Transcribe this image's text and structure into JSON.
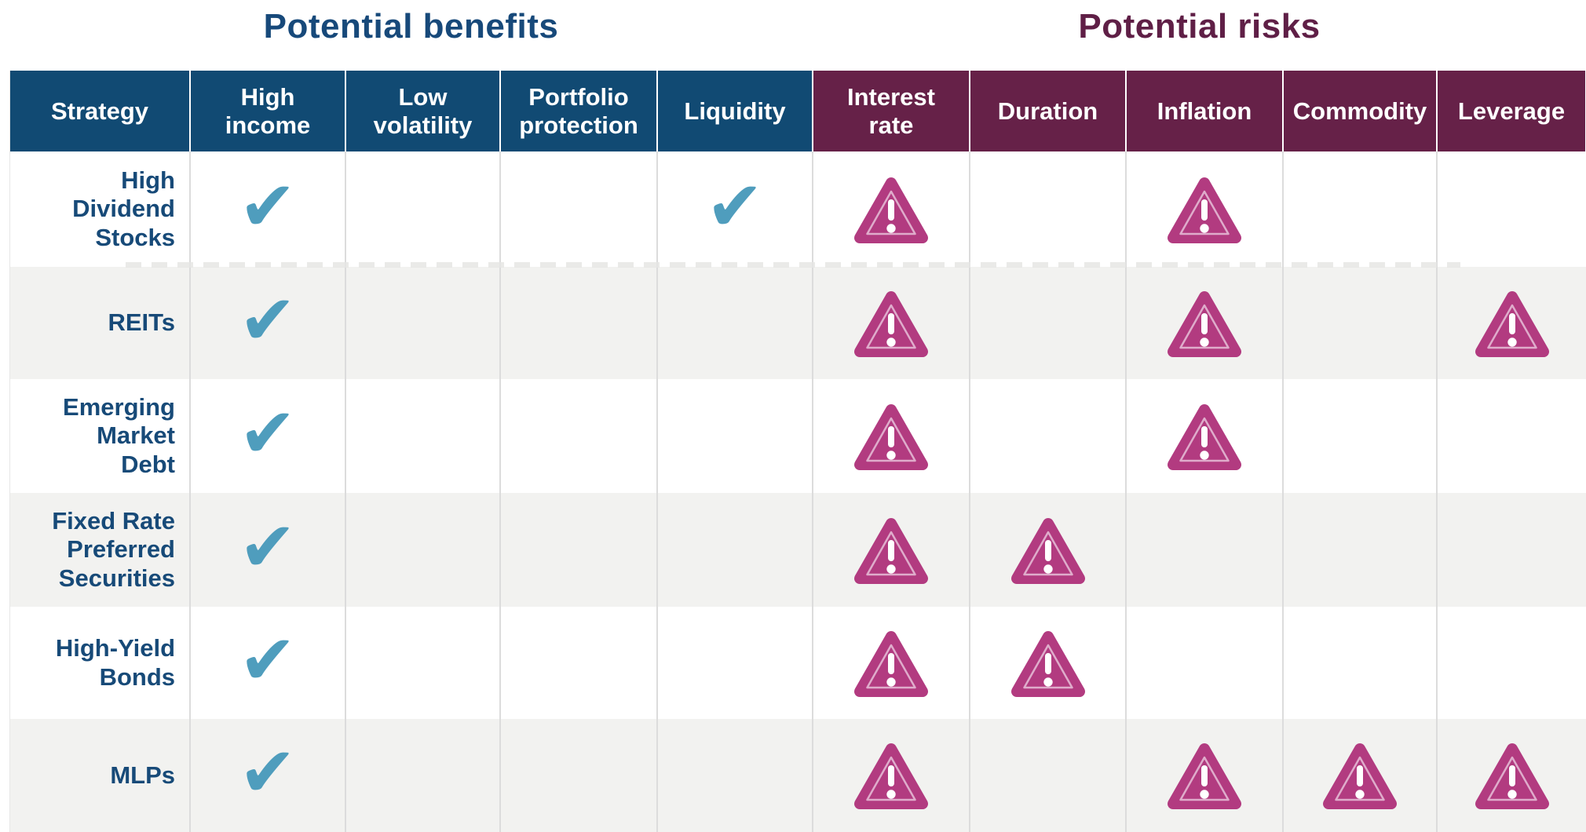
{
  "titles": {
    "benefits": "Potential benefits",
    "risks": "Potential risks"
  },
  "chart_data": {
    "type": "table",
    "strategy_header": "Strategy",
    "benefit_columns": [
      "High\nincome",
      "Low\nvolatility",
      "Portfolio\nprotection",
      "Liquidity"
    ],
    "risk_columns": [
      "Interest\nrate",
      "Duration",
      "Inflation",
      "Commodity",
      "Leverage"
    ],
    "benefit_marker": "check",
    "risk_marker": "warning-triangle",
    "rows": [
      {
        "strategy": "High\nDividend\nStocks",
        "benefits": [
          true,
          false,
          false,
          true
        ],
        "risks": [
          true,
          false,
          true,
          false,
          false
        ]
      },
      {
        "strategy": "REITs",
        "benefits": [
          true,
          false,
          false,
          false
        ],
        "risks": [
          true,
          false,
          true,
          false,
          true
        ]
      },
      {
        "strategy": "Emerging\nMarket\nDebt",
        "benefits": [
          true,
          false,
          false,
          false
        ],
        "risks": [
          true,
          false,
          true,
          false,
          false
        ]
      },
      {
        "strategy": "Fixed Rate\nPreferred\nSecurities",
        "benefits": [
          true,
          false,
          false,
          false
        ],
        "risks": [
          true,
          true,
          false,
          false,
          false
        ]
      },
      {
        "strategy": "High-Yield\nBonds",
        "benefits": [
          true,
          false,
          false,
          false
        ],
        "risks": [
          true,
          true,
          false,
          false,
          false
        ]
      },
      {
        "strategy": "MLPs",
        "benefits": [
          true,
          false,
          false,
          false
        ],
        "risks": [
          true,
          false,
          true,
          true,
          true
        ]
      }
    ]
  },
  "colors": {
    "benefits_header": "#114a73",
    "risks_header": "#662148",
    "benefits_title": "#17497a",
    "risks_title": "#5f1f46",
    "check": "#4f9dbd",
    "triangle": "#b23b80",
    "triangle_inner_outline": "#dfaccb",
    "row_alt": "#f2f2f0",
    "gridline": "#dcdcdc"
  }
}
